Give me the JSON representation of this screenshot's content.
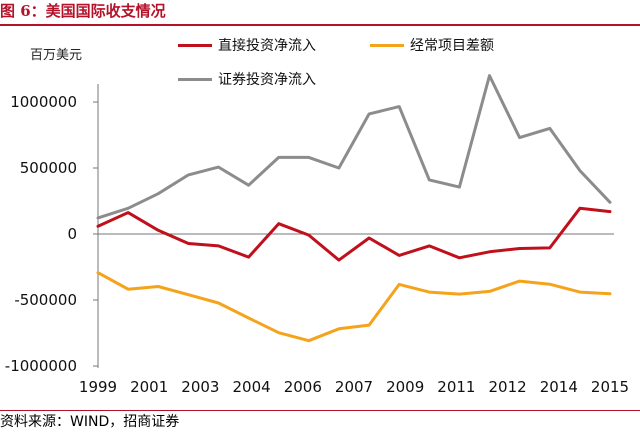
{
  "figure": {
    "title": "图 6：美国国际收支情况",
    "source": "资料来源：WIND，招商证券",
    "unit": "百万美元"
  },
  "colors": {
    "accent": "#b5122a",
    "fdi": "#c0101c",
    "current": "#f5a31a",
    "securities": "#8c8c8c"
  },
  "chart_data": {
    "type": "line",
    "x_ticks": [
      "1999",
      "2001",
      "2003",
      "2004",
      "2006",
      "2007",
      "2009",
      "2011",
      "2012",
      "2014",
      "2015"
    ],
    "y_ticks": [
      "1000000",
      "500000",
      "0",
      "-500000",
      "-1000000"
    ],
    "ylim": [
      -1000000,
      1000000
    ],
    "ylabel": "百万美元",
    "grid": false,
    "legend_position": "top",
    "series": [
      {
        "name": "直接投资净流入",
        "color": "#c0101c",
        "values": [
          58000,
          162000,
          28000,
          -72000,
          -90000,
          -175000,
          78000,
          -8000,
          -198000,
          -30000,
          -162000,
          -90000,
          -180000,
          -135000,
          -110000,
          -105000,
          195000,
          170000
        ]
      },
      {
        "name": "经常项目差额",
        "color": "#f5a31a",
        "values": [
          -293000,
          -418000,
          -398000,
          -460000,
          -523000,
          -636000,
          -748000,
          -808000,
          -718000,
          -690000,
          -382000,
          -440000,
          -455000,
          -435000,
          -357000,
          -380000,
          -440000,
          -452000
        ]
      },
      {
        "name": "证券投资净流入",
        "color": "#8c8c8c",
        "values": [
          122000,
          195000,
          305000,
          448000,
          507000,
          370000,
          580000,
          580000,
          500000,
          910000,
          965000,
          410000,
          355000,
          1200000,
          730000,
          800000,
          480000,
          240000
        ]
      }
    ]
  }
}
